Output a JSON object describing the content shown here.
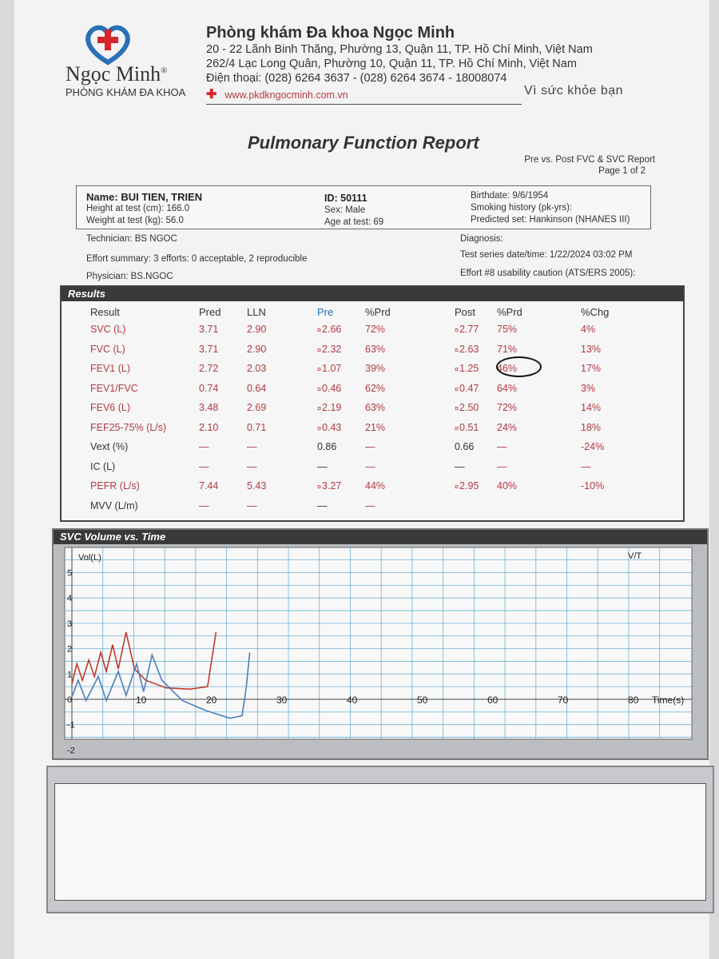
{
  "header": {
    "brand": "Ngọc Minh",
    "brand_sub": "PHÒNG KHÁM ĐA KHOA",
    "clinic": "Phòng khám Đa khoa Ngọc Minh",
    "address1": "20 - 22 Lãnh Binh Thăng, Phường 13, Quận 11, TP. Hồ Chí Minh, Việt Nam",
    "address2": "262/4 Lạc Long Quân, Phường 10, Quận 11, TP. Hồ Chí Minh, Việt Nam",
    "phone": "Điện thoại: (028) 6264 3637 - (028) 6264 3674 - 18008074",
    "website": "www.pkdkngocminh.com.vn",
    "slogan": "Vì sức khỏe bạn"
  },
  "report": {
    "title": "Pulmonary Function Report",
    "subtitle": "Pre vs. Post FVC & SVC Report",
    "page": "Page 1 of 2"
  },
  "patient": {
    "name": "Name:  BUI TIEN, TRIEN",
    "height": "Height at test (cm):  166.0",
    "weight": "Weight at test (kg):  56.0",
    "id": "ID:  50111",
    "sex": "Sex:  Male",
    "age": "Age at test:  69",
    "birthdate": "Birthdate:  9/6/1954",
    "smoking": "Smoking history (pk-yrs):",
    "predicted": "Predicted set:  Hankinson (NHANES III)"
  },
  "info": {
    "technician": "Technician:  BS NGOC",
    "effort": "Effort summary:  3 efforts: 0 acceptable, 2 reproducible",
    "physician": "Physician:  BS.NGOC",
    "diagnosis": "Diagnosis:",
    "datetime": "Test series date/time:  1/22/2024 03:02 PM",
    "caution": "Effort #8 usability caution (ATS/ERS 2005):"
  },
  "results": {
    "title": "Results",
    "headers": [
      "Result",
      "Pred",
      "LLN",
      "Pre",
      "%Prd",
      "Post",
      "%Prd",
      "%Chg"
    ],
    "rows": [
      [
        "SVC  (L)",
        "3.71",
        "2.90",
        "2.66",
        "72%",
        "2.77",
        "75%",
        "4%"
      ],
      [
        "FVC  (L)",
        "3.71",
        "2.90",
        "2.32",
        "63%",
        "2.63",
        "71%",
        "13%"
      ],
      [
        "FEV1  (L)",
        "2.72",
        "2.03",
        "1.07",
        "39%",
        "1.25",
        "46%",
        "17%"
      ],
      [
        "FEV1/FVC",
        "0.74",
        "0.64",
        "0.46",
        "62%",
        "0.47",
        "64%",
        "3%"
      ],
      [
        "FEV6  (L)",
        "3.48",
        "2.69",
        "2.19",
        "63%",
        "2.50",
        "72%",
        "14%"
      ],
      [
        "FEF25-75%  (L/s)",
        "2.10",
        "0.71",
        "0.43",
        "21%",
        "0.51",
        "24%",
        "18%"
      ],
      [
        "Vext  (%)",
        "—",
        "—",
        "0.86",
        "—",
        "0.66",
        "—",
        "-24%"
      ],
      [
        "IC  (L)",
        "—",
        "—",
        "—",
        "—",
        "—",
        "—",
        "—"
      ],
      [
        "PEFR  (L/s)",
        "7.44",
        "5.43",
        "3.27",
        "44%",
        "2.95",
        "40%",
        "-10%"
      ],
      [
        "MVV  (L/m)",
        "—",
        "—",
        "—",
        "—",
        "",
        "",
        ""
      ]
    ],
    "marked": [
      true,
      true,
      true,
      true,
      true,
      true,
      false,
      false,
      true,
      false
    ],
    "circled": "46%"
  },
  "chart_data": {
    "type": "line",
    "title": "SVC Volume vs. Time",
    "ylabel": "Vol(L)",
    "xlabel": "Time(s)",
    "corner_label": "V/T",
    "xlim": [
      0,
      90
    ],
    "ylim": [
      -2,
      6
    ],
    "xticks": [
      10,
      20,
      30,
      40,
      50,
      60,
      70,
      80
    ],
    "yticks": [
      5,
      4,
      3,
      2,
      1,
      0,
      -1,
      -2
    ],
    "grid": true,
    "series": [
      {
        "color": "#c0392b",
        "points": [
          [
            0,
            0.6
          ],
          [
            0.7,
            1.4
          ],
          [
            1.5,
            0.75
          ],
          [
            2.4,
            1.55
          ],
          [
            3.2,
            0.9
          ],
          [
            4.1,
            1.85
          ],
          [
            4.9,
            1.1
          ],
          [
            5.8,
            2.15
          ],
          [
            6.6,
            1.2
          ],
          [
            7.7,
            2.65
          ],
          [
            8.9,
            1.2
          ],
          [
            10.5,
            0.75
          ],
          [
            13.4,
            0.45
          ],
          [
            16.8,
            0.4
          ],
          [
            19.3,
            0.5
          ],
          [
            20.5,
            2.65
          ]
        ]
      },
      {
        "color": "#4a7fc1",
        "points": [
          [
            0,
            0.1
          ],
          [
            0.9,
            0.75
          ],
          [
            2.0,
            -0.05
          ],
          [
            3.75,
            0.9
          ],
          [
            4.9,
            -0.05
          ],
          [
            6.6,
            1.1
          ],
          [
            7.7,
            0.15
          ],
          [
            9.2,
            1.4
          ],
          [
            10.2,
            0.3
          ],
          [
            11.4,
            1.75
          ],
          [
            12.8,
            0.75
          ],
          [
            15.7,
            -0.05
          ],
          [
            19.1,
            -0.45
          ],
          [
            22.5,
            -0.75
          ],
          [
            24.2,
            -0.65
          ],
          [
            24.8,
            0.45
          ],
          [
            25.3,
            1.85
          ]
        ]
      }
    ]
  }
}
